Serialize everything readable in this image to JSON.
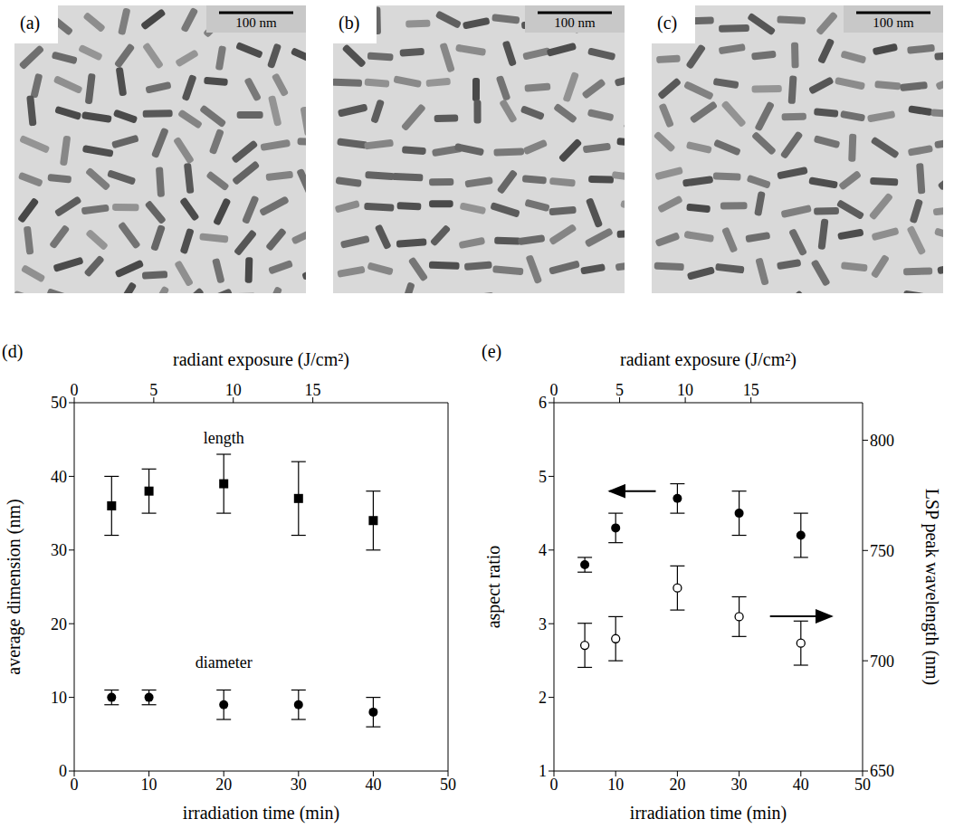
{
  "panels": [
    {
      "label": "(a)",
      "scale_bar": "100 nm"
    },
    {
      "label": "(b)",
      "scale_bar": "100 nm"
    },
    {
      "label": "(c)",
      "scale_bar": "100 nm"
    }
  ],
  "chart_data": [
    {
      "type": "scatter",
      "label": "(d)",
      "xlabel": "irradiation time (min)",
      "ylabel": "average dimension (nm)",
      "x2label": "radiant exposure (J/cm²)",
      "x": [
        5,
        10,
        20,
        30,
        40
      ],
      "xlim": [
        0,
        50
      ],
      "xticks": [
        0,
        10,
        20,
        30,
        40,
        50
      ],
      "ylim": [
        0,
        50
      ],
      "yticks": [
        0,
        10,
        20,
        30,
        40,
        50
      ],
      "x2lim": [
        0,
        23.5
      ],
      "x2ticks": [
        0,
        5,
        10,
        15
      ],
      "grid": false,
      "series": [
        {
          "name": "length",
          "marker": "square",
          "color": "#000000",
          "values": [
            36,
            38,
            39,
            37,
            34
          ],
          "errors": [
            4,
            3,
            4,
            5,
            4
          ]
        },
        {
          "name": "diameter",
          "marker": "circle",
          "color": "#000000",
          "values": [
            10,
            10,
            9,
            9,
            8
          ],
          "errors": [
            1,
            1,
            2,
            2,
            2
          ]
        }
      ]
    },
    {
      "type": "scatter",
      "label": "(e)",
      "xlabel": "irradiation time (min)",
      "ylabel": "aspect ratio",
      "y2label": "LSP peak wavelength (nm)",
      "x2label": "radiant exposure (J/cm²)",
      "x": [
        5,
        10,
        20,
        30,
        40
      ],
      "xlim": [
        0,
        50
      ],
      "xticks": [
        0,
        10,
        20,
        30,
        40,
        50
      ],
      "ylim": [
        1,
        6
      ],
      "yticks": [
        1,
        2,
        3,
        4,
        5,
        6
      ],
      "y2lim": [
        650,
        817
      ],
      "y2ticks": [
        650,
        700,
        750,
        800
      ],
      "x2lim": [
        0,
        23.5
      ],
      "x2ticks": [
        0,
        5,
        10,
        15
      ],
      "grid": false,
      "series": [
        {
          "marker": "circle",
          "color": "#000000",
          "values": [
            3.8,
            4.3,
            4.7,
            4.5,
            4.2
          ],
          "errors": [
            0.1,
            0.2,
            0.2,
            0.3,
            0.3
          ]
        },
        {
          "marker": "open_circle",
          "color": "#000000",
          "axis": "y2",
          "values": [
            707,
            710,
            733,
            720,
            708
          ],
          "errors": [
            10,
            10,
            10,
            9,
            10
          ]
        }
      ]
    }
  ]
}
